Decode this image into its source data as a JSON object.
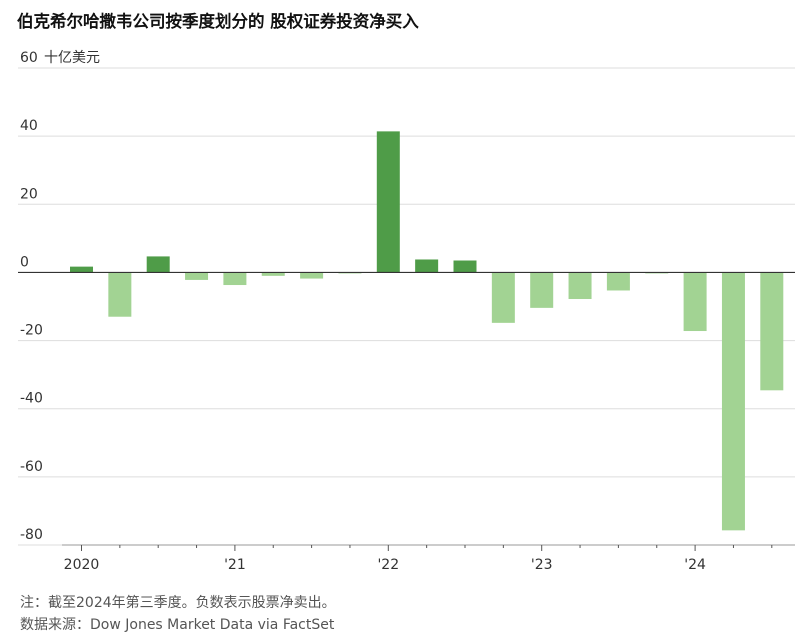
{
  "title": "伯克希尔哈撒韦公司按季度划分的 股权证券投资净买入",
  "chart_data": {
    "type": "bar",
    "title": "伯克希尔哈撒韦公司按季度划分的 股权证券投资净买入",
    "unit_label": "十亿美元",
    "ylim": [
      -80,
      60
    ],
    "yticks": [
      60,
      40,
      20,
      0,
      -20,
      -40,
      -60,
      -80
    ],
    "ytick_labels": [
      "60",
      "40",
      "20",
      "0",
      "-20",
      "-40",
      "-60",
      "-80"
    ],
    "x_year_labels": [
      {
        "label": "2020",
        "index": 0
      },
      {
        "label": "'21",
        "index": 4
      },
      {
        "label": "'22",
        "index": 8
      },
      {
        "label": "'23",
        "index": 12
      },
      {
        "label": "'24",
        "index": 16
      }
    ],
    "categories": [
      "2020Q1",
      "2020Q2",
      "2020Q3",
      "2020Q4",
      "2021Q1",
      "2021Q2",
      "2021Q3",
      "2021Q4",
      "2022Q1",
      "2022Q2",
      "2022Q3",
      "2022Q4",
      "2023Q1",
      "2023Q2",
      "2023Q3",
      "2023Q4",
      "2024Q1",
      "2024Q2",
      "2024Q3"
    ],
    "values": [
      1.7,
      -13,
      4.7,
      -2.2,
      -3.7,
      -1.0,
      -1.8,
      -0.3,
      41.4,
      3.8,
      3.5,
      -14.8,
      -10.4,
      -7.8,
      -5.3,
      -0.3,
      -17.2,
      -75.7,
      -34.6
    ],
    "colors": {
      "positive": "#4f9c48",
      "negative": "#a2d393"
    },
    "grid": true,
    "legend": "none"
  },
  "notes": {
    "note": "注：截至2024年第三季度。负数表示股票净卖出。",
    "source": "数据来源：Dow Jones Market Data via FactSet"
  }
}
